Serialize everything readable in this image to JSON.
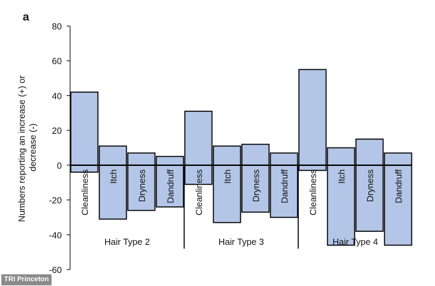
{
  "panel_label": "a",
  "credit": "TRI Princeton",
  "colors": {
    "bar_fill": "#b4c6e7",
    "bar_stroke": "#000000",
    "axis": "#000000"
  },
  "chart_data": {
    "type": "bar",
    "title": "",
    "xlabel": "",
    "ylabel": "Numbers reporting an increase (+) or decrease (-)",
    "ylim": [
      -60,
      80
    ],
    "yticks": [
      80,
      60,
      40,
      20,
      0,
      -20,
      -40,
      -60
    ],
    "grid": false,
    "groups": [
      {
        "name": "Hair Type 2",
        "categories": [
          "Cleanliness",
          "Itch",
          "Dryness",
          "Dandruff"
        ],
        "increase": [
          42,
          11,
          7,
          5
        ],
        "decrease": [
          -4,
          -31,
          -26,
          -24
        ]
      },
      {
        "name": "Hair Type 3",
        "categories": [
          "Cleanliness",
          "Itch",
          "Dryness",
          "Dandruff"
        ],
        "increase": [
          31,
          11,
          12,
          7
        ],
        "decrease": [
          -11,
          -33,
          -27,
          -30
        ]
      },
      {
        "name": "Hair Type 4",
        "categories": [
          "Cleanliness",
          "Itch",
          "Dryness",
          "Dandruff"
        ],
        "increase": [
          55,
          10,
          15,
          7
        ],
        "decrease": [
          -3,
          -46,
          -38,
          -46
        ]
      }
    ]
  }
}
